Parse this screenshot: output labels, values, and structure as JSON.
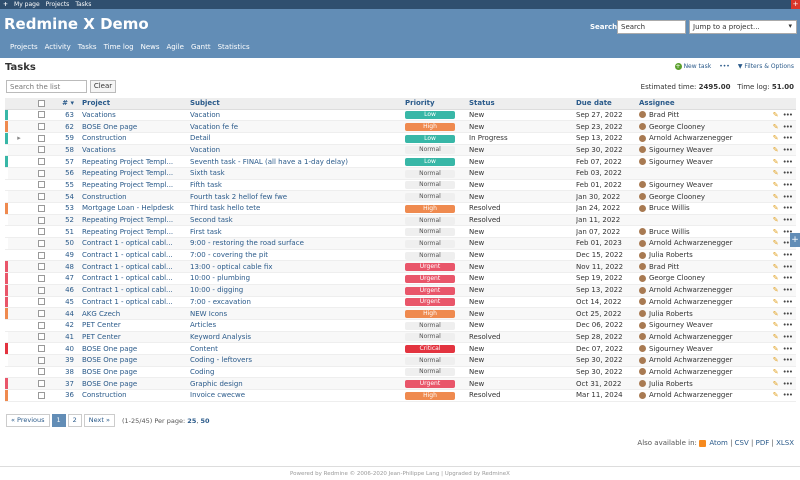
{
  "topbar": {
    "items": [
      "My page",
      "Projects",
      "Tasks"
    ]
  },
  "header": {
    "title": "Redmine X Demo",
    "search_label": "Search:",
    "search_placeholder": "Search",
    "project_select": "Jump to a project...",
    "menu": [
      "Projects",
      "Activity",
      "Tasks",
      "Time log",
      "News",
      "Agile",
      "Gantt",
      "Statistics"
    ]
  },
  "page": {
    "title": "Tasks",
    "new_task": "New task",
    "filters": "Filters & Options",
    "search_placeholder": "Search the list",
    "clear": "Clear",
    "estimated_label": "Estimated time:",
    "estimated_value": "2495.00",
    "timelog_label": "Time log:",
    "timelog_value": "51.00"
  },
  "table": {
    "headers": [
      "#",
      "Project",
      "Subject",
      "Priority",
      "Status",
      "Due date",
      "Assignee"
    ],
    "rows": [
      {
        "id": "63",
        "project": "Vacations",
        "subject": "Vacation",
        "priority": "Low",
        "status": "New",
        "due": "Sep 27, 2022",
        "assignee": "Brad Pitt",
        "marker": "#38b7a7"
      },
      {
        "id": "62",
        "project": "BOSE One page",
        "subject": "Vacation fe fe",
        "priority": "High",
        "status": "New",
        "due": "Sep 23, 2022",
        "assignee": "George Clooney",
        "marker": "#ef8a4f"
      },
      {
        "id": "59",
        "project": "Construction",
        "subject": "Detail",
        "priority": "Low",
        "status": "In Progress",
        "due": "Sep 13, 2022",
        "assignee": "Arnold Achwarzenegger",
        "marker": "#38b7a7"
      },
      {
        "id": "58",
        "project": "Vacations",
        "subject": "Vacation",
        "priority": "Normal",
        "status": "New",
        "due": "Sep 30, 2022",
        "assignee": "Sigourney Weaver",
        "marker": ""
      },
      {
        "id": "57",
        "project": "Repeating Project Templ...",
        "subject": "Seventh task - FINAL (all have a 1-day delay)",
        "priority": "Low",
        "status": "New",
        "due": "Feb 07, 2022",
        "assignee": "Sigourney Weaver",
        "marker": "#38b7a7"
      },
      {
        "id": "56",
        "project": "Repeating Project Templ...",
        "subject": "Sixth task",
        "priority": "Normal",
        "status": "New",
        "due": "Feb 03, 2022",
        "assignee": "",
        "marker": ""
      },
      {
        "id": "55",
        "project": "Repeating Project Templ...",
        "subject": "Fifth task",
        "priority": "Normal",
        "status": "New",
        "due": "Feb 01, 2022",
        "assignee": "Sigourney Weaver",
        "marker": ""
      },
      {
        "id": "54",
        "project": "Construction",
        "subject": "Fourth task 2 hellof few fwe",
        "priority": "Normal",
        "status": "New",
        "due": "Jan 30, 2022",
        "assignee": "George Clooney",
        "marker": ""
      },
      {
        "id": "53",
        "project": "Mortgage Loan - Helpdesk",
        "subject": "Third task hello tete",
        "priority": "High",
        "status": "Resolved",
        "due": "Jan 24, 2022",
        "assignee": "Bruce Willis",
        "marker": "#ef8a4f"
      },
      {
        "id": "52",
        "project": "Repeating Project Templ...",
        "subject": "Second task",
        "priority": "Normal",
        "status": "Resolved",
        "due": "Jan 11, 2022",
        "assignee": "",
        "marker": ""
      },
      {
        "id": "51",
        "project": "Repeating Project Templ...",
        "subject": "First task",
        "priority": "Normal",
        "status": "New",
        "due": "Jan 07, 2022",
        "assignee": "Bruce Willis",
        "marker": ""
      },
      {
        "id": "50",
        "project": "Contract 1 - optical cabl...",
        "subject": "9:00 - restoring the road surface",
        "priority": "Normal",
        "status": "New",
        "due": "Feb 01, 2023",
        "assignee": "Arnold Achwarzenegger",
        "marker": ""
      },
      {
        "id": "49",
        "project": "Contract 1 - optical cabl...",
        "subject": "7:00 - covering the pit",
        "priority": "Normal",
        "status": "New",
        "due": "Dec 15, 2022",
        "assignee": "Julia Roberts",
        "marker": ""
      },
      {
        "id": "48",
        "project": "Contract 1 - optical cabl...",
        "subject": "13:00 - optical cable fix",
        "priority": "Urgent",
        "status": "New",
        "due": "Nov 11, 2022",
        "assignee": "Brad Pitt",
        "marker": "#e9566a"
      },
      {
        "id": "47",
        "project": "Contract 1 - optical cabl...",
        "subject": "10:00 - plumbing",
        "priority": "Urgent",
        "status": "New",
        "due": "Sep 19, 2022",
        "assignee": "George Clooney",
        "marker": "#e9566a"
      },
      {
        "id": "46",
        "project": "Contract 1 - optical cabl...",
        "subject": "10:00 - digging",
        "priority": "Urgent",
        "status": "New",
        "due": "Sep 13, 2022",
        "assignee": "Arnold Achwarzenegger",
        "marker": "#e9566a"
      },
      {
        "id": "45",
        "project": "Contract 1 - optical cabl...",
        "subject": "7:00 - excavation",
        "priority": "Urgent",
        "status": "New",
        "due": "Oct 14, 2022",
        "assignee": "Arnold Achwarzenegger",
        "marker": "#e9566a"
      },
      {
        "id": "44",
        "project": "AKG Czech",
        "subject": "NEW Icons",
        "priority": "High",
        "status": "New",
        "due": "Oct 25, 2022",
        "assignee": "Julia Roberts",
        "marker": "#ef8a4f"
      },
      {
        "id": "42",
        "project": "PET Center",
        "subject": "Articles",
        "priority": "Normal",
        "status": "New",
        "due": "Dec 06, 2022",
        "assignee": "Sigourney Weaver",
        "marker": ""
      },
      {
        "id": "41",
        "project": "PET Center",
        "subject": "Keyword Analysis",
        "priority": "Normal",
        "status": "Resolved",
        "due": "Sep 28, 2022",
        "assignee": "Arnold Achwarzenegger",
        "marker": ""
      },
      {
        "id": "40",
        "project": "BOSE One page",
        "subject": "Content",
        "priority": "Critical",
        "status": "New",
        "due": "Dec 07, 2022",
        "assignee": "Sigourney Weaver",
        "marker": "#e3333f"
      },
      {
        "id": "39",
        "project": "BOSE One page",
        "subject": "Coding - leftovers",
        "priority": "Normal",
        "status": "New",
        "due": "Sep 30, 2022",
        "assignee": "Arnold Achwarzenegger",
        "marker": ""
      },
      {
        "id": "38",
        "project": "BOSE One page",
        "subject": "Coding",
        "priority": "Normal",
        "status": "New",
        "due": "Sep 30, 2022",
        "assignee": "Arnold Achwarzenegger",
        "marker": ""
      },
      {
        "id": "37",
        "project": "BOSE One page",
        "subject": "Graphic design",
        "priority": "Urgent",
        "status": "New",
        "due": "Oct 31, 2022",
        "assignee": "Julia Roberts",
        "marker": "#e9566a"
      },
      {
        "id": "36",
        "project": "Construction",
        "subject": "Invoice cwecwe",
        "priority": "High",
        "status": "Resolved",
        "due": "Mar 11, 2024",
        "assignee": "Arnold Achwarzenegger",
        "marker": "#ef8a4f"
      }
    ]
  },
  "pagination": {
    "prev": "« Previous",
    "pages": [
      "1",
      "2"
    ],
    "next": "Next »",
    "range": "(1-25/45)",
    "per_page_label": "Per page:",
    "per_page_options": [
      "25",
      "50"
    ]
  },
  "also_available": {
    "label": "Also available in:",
    "formats": [
      "Atom",
      "CSV",
      "PDF",
      "XLSX"
    ]
  },
  "footer": {
    "text": "Powered by Redmine © 2006-2020 Jean-Philippe Lang | Upgraded by RedmineX"
  }
}
